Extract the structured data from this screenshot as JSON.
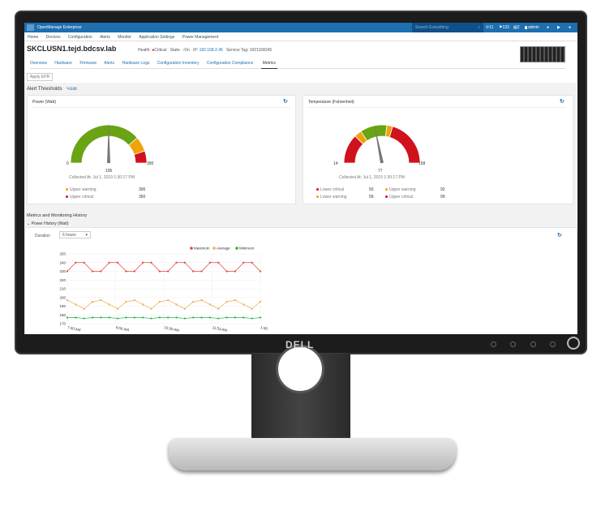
{
  "app": {
    "title": "OpenManage Enterprise",
    "search_placeholder": "Search Everything",
    "jobs": "11",
    "alerts": "133",
    "warnings": "2",
    "user": "admin"
  },
  "nav": [
    "Home",
    "Devices",
    "Configuration",
    "Alerts",
    "Monitor",
    "Application Settings",
    "Power Management"
  ],
  "device": {
    "name": "SKCLUSN1.tejd.bdcsv.lab",
    "health_label": "Health:",
    "health": "Critical",
    "state_label": "State:",
    "state": "On",
    "ip_label": "IP:",
    "ip": "192.168.2.45",
    "service_tag_label": "Service Tag:",
    "service_tag": "1921168245"
  },
  "tabs": [
    "Overview",
    "Hardware",
    "Firmware",
    "Alerts",
    "Hardware Logs",
    "Configuration Inventory",
    "Configuration Compliance",
    "Metrics"
  ],
  "active_tab": "Metrics",
  "apply_epr": "Apply EPR",
  "alert_thresholds": {
    "title": "Alert Thresholds",
    "edit": "Edit"
  },
  "power": {
    "title": "Power (Watt)",
    "min": 0,
    "max": 390,
    "value": 195,
    "value_label": "195",
    "min_label": "0",
    "max_label": "390",
    "collected": "Collected At:  Jul 1, 2019 1:30:17 PM",
    "thresholds": [
      {
        "label": "Upper warning",
        "value": "300",
        "color": "#f0a30a"
      },
      {
        "label": "Upper critical",
        "value": "350",
        "color": "#d0121c"
      }
    ]
  },
  "temperature": {
    "title": "Temperature (Fahrenheit)",
    "min": 14,
    "max": 158,
    "value": 77,
    "value_label": "77",
    "min_label": "14",
    "max_label": "158",
    "collected": "Collected At:  Jul 1, 2019 1:30:17 PM",
    "thresholds": [
      {
        "label": "Lower critical",
        "value": "50",
        "color": "#d0121c"
      },
      {
        "label": "Lower warning",
        "value": "59",
        "color": "#f0a30a"
      },
      {
        "label": "Upper warning",
        "value": "92",
        "color": "#f0a30a"
      },
      {
        "label": "Upper critical",
        "value": "99",
        "color": "#d0121c"
      }
    ]
  },
  "colors": {
    "green": "#6aa313",
    "yellow": "#f0a30a",
    "red": "#d0121c",
    "brand": "#1d6fb0"
  },
  "history": {
    "title": "Metrics and Monitoring History",
    "section": "Power History (Watt)",
    "duration_label": "Duration",
    "duration": "6 hours"
  },
  "chart_data": {
    "type": "line",
    "ylim": [
      170,
      250
    ],
    "yticks": [
      170,
      180,
      190,
      200,
      210,
      220,
      230,
      240,
      250
    ],
    "xtick_labels": [
      "7:40 AM",
      "9:06 AM",
      "10:30 AM",
      "11:53 AM",
      "1:00 PM"
    ],
    "legend": "top-right",
    "grid": true,
    "series": [
      {
        "name": "Maximum",
        "color": "#e8413a",
        "values": [
          230,
          240,
          240,
          230,
          230,
          240,
          240,
          230,
          230,
          240,
          240,
          230,
          230,
          240,
          240,
          230,
          230,
          240,
          240,
          230,
          230,
          240,
          240,
          230
        ]
      },
      {
        "name": "Average",
        "color": "#f5a94a",
        "values": [
          197,
          192,
          187,
          195,
          197,
          192,
          187,
          195,
          197,
          192,
          187,
          195,
          197,
          192,
          187,
          195,
          197,
          192,
          187,
          195,
          197,
          192,
          187,
          195
        ]
      },
      {
        "name": "Minimum",
        "color": "#22b14c",
        "values": [
          177,
          177,
          176,
          177,
          177,
          177,
          176,
          177,
          177,
          177,
          176,
          177,
          177,
          177,
          176,
          177,
          177,
          177,
          176,
          177,
          177,
          177,
          176,
          177
        ]
      }
    ]
  }
}
